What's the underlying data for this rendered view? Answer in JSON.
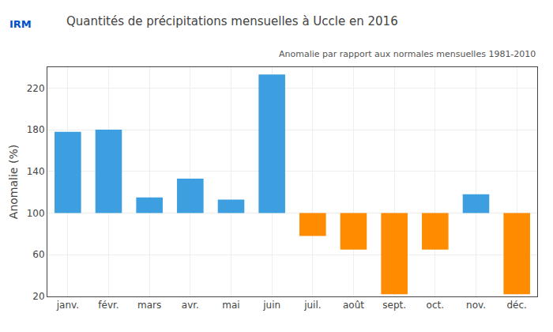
{
  "chart_data": {
    "type": "bar",
    "title": "Quantités de précipitations mensuelles à Uccle en 2016",
    "subtitle": "Anomalie par rapport aux normales mensuelles 1981-2010",
    "ylabel": "Anomalie (%)",
    "categories": [
      "janv.",
      "févr.",
      "mars",
      "avr.",
      "mai",
      "juin",
      "juil.",
      "août",
      "sept.",
      "oct.",
      "nov.",
      "déc."
    ],
    "values": [
      178,
      180,
      115,
      133,
      113,
      233,
      78,
      65,
      22,
      65,
      118,
      22
    ],
    "baseline": 100,
    "colors": [
      "#3D9FE0",
      "#3D9FE0",
      "#3D9FE0",
      "#3D9FE0",
      "#3D9FE0",
      "#3D9FE0",
      "#FF8C00",
      "#FF8C00",
      "#FF8C00",
      "#FF8C00",
      "#3D9FE0",
      "#FF8C00"
    ],
    "ylim": [
      20,
      240
    ],
    "yticks": [
      20,
      60,
      100,
      140,
      180,
      220
    ],
    "grid": true,
    "annotations": [
      "IRM"
    ]
  }
}
